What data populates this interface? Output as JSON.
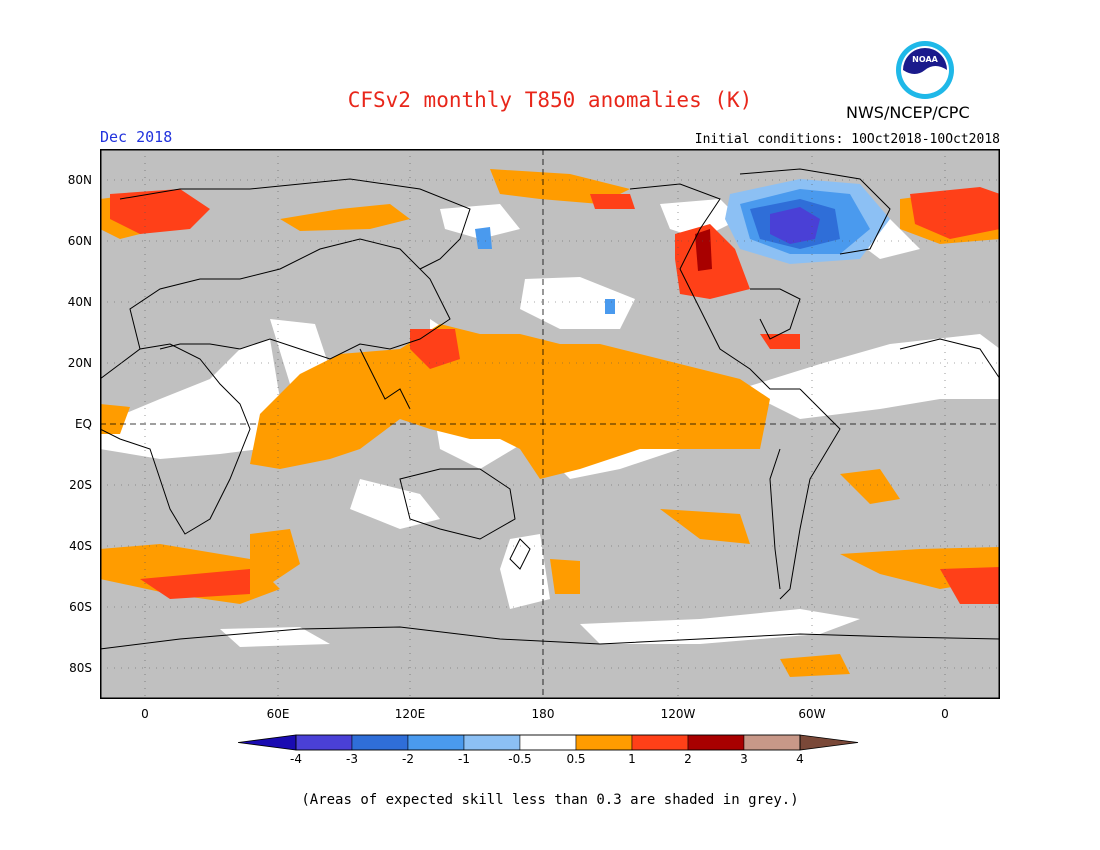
{
  "title": "CFSv2 monthly T850 anomalies (K)",
  "agency": "NWS/NCEP/CPC",
  "logo_text": "NOAA",
  "valid_month": "Dec 2018",
  "initial_conditions": "Initial conditions: 10Oct2018-10Oct2018",
  "lat_labels": [
    "80N",
    "60N",
    "40N",
    "20N",
    "EQ",
    "20S",
    "40S",
    "60S",
    "80S"
  ],
  "lon_labels": [
    "0",
    "60E",
    "120E",
    "180",
    "120W",
    "60W",
    "0"
  ],
  "colorbar": {
    "labels": [
      "-4",
      "-3",
      "-2",
      "-1",
      "-0.5",
      "0.5",
      "1",
      "2",
      "3",
      "4"
    ],
    "colors": [
      "#1a0bb2",
      "#4a40d6",
      "#2f6ed8",
      "#4a9aee",
      "#8cc0f4",
      "#ffffff",
      "#ff9c00",
      "#ff4018",
      "#a80000",
      "#c89888",
      "#7a4838"
    ]
  },
  "colors": {
    "skill_grey": "#c0c0c0",
    "title_red": "#e8261a",
    "month_blue": "#2233dd"
  },
  "footnote": "(Areas of expected skill less than 0.3 are shaded in grey.)"
}
